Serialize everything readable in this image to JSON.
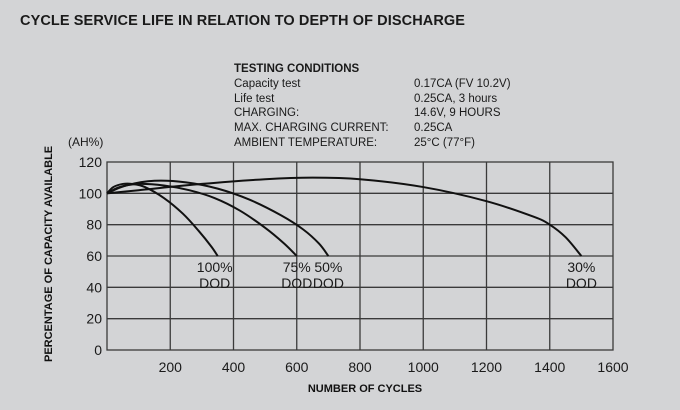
{
  "title": "CYCLE SERVICE LIFE IN RELATION TO DEPTH OF DISCHARGE",
  "testing_conditions": {
    "heading": "TESTING CONDITIONS",
    "rows": [
      {
        "label": "Capacity test",
        "value": "0.17CA (FV 10.2V)"
      },
      {
        "label": "Life test",
        "value": "0.25CA, 3 hours"
      },
      {
        "label": "CHARGING:",
        "value": "14.6V, 9 HOURS"
      },
      {
        "label": "MAX. CHARGING CURRENT:",
        "value": "0.25CA"
      },
      {
        "label": "AMBIENT TEMPERATURE:",
        "value": "25°C (77°F)"
      }
    ]
  },
  "chart_data": {
    "type": "line",
    "title": "CYCLE SERVICE LIFE IN RELATION TO DEPTH OF DISCHARGE",
    "xlabel": "NUMBER OF CYCLES",
    "ylabel": "PERCENTAGE OF CAPACITY AVAILABLE",
    "y_unit": "(AH%)",
    "xlim": [
      0,
      1600
    ],
    "ylim": [
      0,
      120
    ],
    "x_ticks": [
      200,
      400,
      600,
      800,
      1000,
      1200,
      1400,
      1600
    ],
    "y_ticks": [
      0,
      20,
      40,
      60,
      80,
      100,
      120
    ],
    "grid": true,
    "legend": "inline-labels",
    "series": [
      {
        "name": "100% DOD",
        "label_lines": [
          "100%",
          "DOD"
        ],
        "x": [
          0,
          20,
          50,
          80,
          120,
          180,
          240,
          290,
          330,
          350
        ],
        "y": [
          100,
          104,
          106,
          106,
          104,
          97,
          87,
          76,
          66,
          60
        ]
      },
      {
        "name": "75% DOD",
        "label_lines": [
          "75%",
          "DOD"
        ],
        "x": [
          0,
          40,
          100,
          180,
          260,
          340,
          420,
          500,
          560,
          600
        ],
        "y": [
          100,
          104,
          106,
          105,
          102,
          97,
          89,
          78,
          68,
          60
        ]
      },
      {
        "name": "50% DOD",
        "label_lines": [
          "50%",
          "DOD"
        ],
        "x": [
          0,
          60,
          150,
          250,
          350,
          450,
          550,
          620,
          670,
          700
        ],
        "y": [
          100,
          105,
          108,
          107,
          103,
          96,
          86,
          77,
          68,
          60
        ]
      },
      {
        "name": "30% DOD",
        "label_lines": [
          "30%",
          "DOD"
        ],
        "x": [
          0,
          100,
          300,
          500,
          650,
          800,
          1000,
          1200,
          1350,
          1400,
          1450,
          1500
        ],
        "y": [
          100,
          102,
          106,
          109,
          110,
          109,
          104,
          95,
          85,
          80,
          72,
          60
        ]
      }
    ]
  }
}
